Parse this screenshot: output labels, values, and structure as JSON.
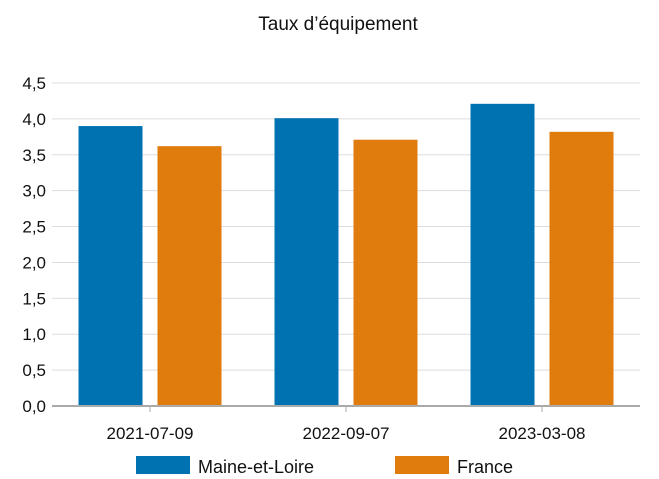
{
  "chart_data": {
    "type": "bar",
    "title": "Taux d’équipement",
    "xlabel": "",
    "ylabel": "",
    "categories": [
      "2021-07-09",
      "2022-09-07",
      "2023-03-08"
    ],
    "series": [
      {
        "name": "Maine-et-Loire",
        "values": [
          3.9,
          4.01,
          4.21
        ],
        "color": "#0072b2"
      },
      {
        "name": "France",
        "values": [
          3.62,
          3.71,
          3.82
        ],
        "color": "#e07b0e"
      }
    ],
    "ylim": [
      0,
      4.5
    ],
    "yticks": [
      0,
      0.5,
      1,
      1.5,
      2,
      2.5,
      3,
      3.5,
      4,
      4.5
    ],
    "ytick_labels": [
      "0,0",
      "0,5",
      "1,0",
      "1,5",
      "2,0",
      "2,5",
      "3,0",
      "3,5",
      "4,0",
      "4,5"
    ],
    "grid": true,
    "legend_position": "bottom",
    "colors": {
      "grid": "#dddddd",
      "axis": "#aaaaaa"
    }
  }
}
